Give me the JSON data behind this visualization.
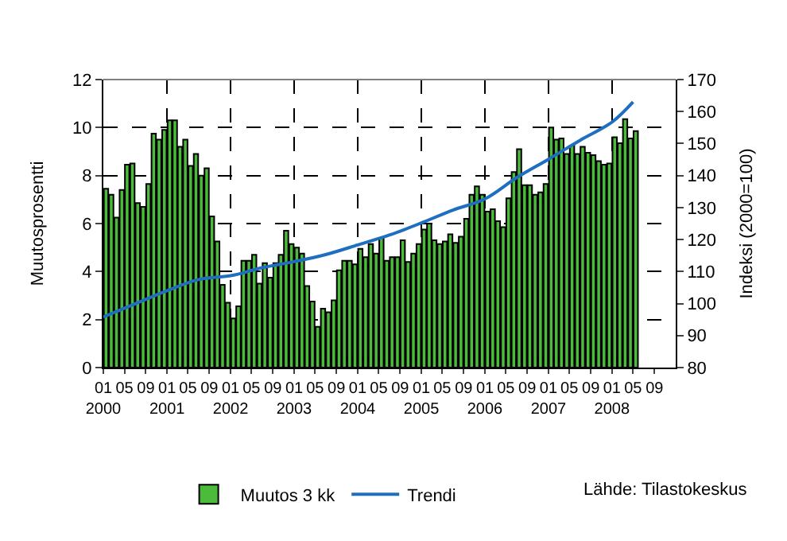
{
  "chart_data": {
    "type": "bar",
    "ylabel": "Muutosprosentti",
    "y2label": "Indeksi (2000=100)",
    "x": [
      "2000-01",
      "2000-02",
      "2000-03",
      "2000-04",
      "2000-05",
      "2000-06",
      "2000-07",
      "2000-08",
      "2000-09",
      "2000-10",
      "2000-11",
      "2000-12",
      "2001-01",
      "2001-02",
      "2001-03",
      "2001-04",
      "2001-05",
      "2001-06",
      "2001-07",
      "2001-08",
      "2001-09",
      "2001-10",
      "2001-11",
      "2001-12",
      "2002-01",
      "2002-02",
      "2002-03",
      "2002-04",
      "2002-05",
      "2002-06",
      "2002-07",
      "2002-08",
      "2002-09",
      "2002-10",
      "2002-11",
      "2002-12",
      "2003-01",
      "2003-02",
      "2003-03",
      "2003-04",
      "2003-05",
      "2003-06",
      "2003-07",
      "2003-08",
      "2003-09",
      "2003-10",
      "2003-11",
      "2003-12",
      "2004-01",
      "2004-02",
      "2004-03",
      "2004-04",
      "2004-05",
      "2004-06",
      "2004-07",
      "2004-08",
      "2004-09",
      "2004-10",
      "2004-11",
      "2004-12",
      "2005-01",
      "2005-02",
      "2005-03",
      "2005-04",
      "2005-05",
      "2005-06",
      "2005-07",
      "2005-08",
      "2005-09",
      "2005-10",
      "2005-11",
      "2005-12",
      "2006-01",
      "2006-02",
      "2006-03",
      "2006-04",
      "2006-05",
      "2006-06",
      "2006-07",
      "2006-08",
      "2006-09",
      "2006-10",
      "2006-11",
      "2006-12",
      "2007-01",
      "2007-02",
      "2007-03",
      "2007-04",
      "2007-05",
      "2007-06",
      "2007-07",
      "2007-08",
      "2007-09",
      "2007-10",
      "2007-11",
      "2007-12",
      "2008-01",
      "2008-02",
      "2008-03",
      "2008-04",
      "2008-05"
    ],
    "series": [
      {
        "name": "Muutos 3 kk",
        "color": "#4cbb3c",
        "values": [
          7.45,
          7.2,
          6.25,
          7.4,
          8.45,
          8.5,
          6.85,
          6.7,
          7.65,
          9.75,
          9.5,
          9.9,
          10.3,
          10.3,
          9.2,
          9.5,
          8.4,
          8.9,
          8.0,
          8.3,
          6.3,
          5.25,
          3.45,
          2.7,
          2.05,
          2.55,
          4.45,
          4.45,
          4.7,
          3.5,
          4.35,
          3.75,
          4.35,
          4.7,
          5.7,
          5.15,
          5.0,
          4.75,
          3.4,
          2.75,
          1.7,
          2.45,
          2.3,
          2.8,
          4.05,
          4.45,
          4.45,
          4.3,
          4.95,
          4.6,
          5.15,
          4.75,
          5.4,
          4.45,
          4.6,
          4.6,
          5.3,
          4.4,
          4.75,
          5.15,
          5.75,
          6.0,
          5.3,
          5.15,
          5.25,
          5.55,
          5.2,
          5.45,
          6.2,
          7.2,
          7.55,
          7.2,
          6.5,
          6.6,
          6.1,
          5.85,
          7.05,
          8.15,
          9.1,
          7.6,
          7.6,
          7.2,
          7.3,
          7.65,
          10.0,
          9.5,
          9.55,
          8.9,
          9.25,
          8.9,
          9.2,
          8.95,
          8.85,
          8.6,
          8.45,
          8.5,
          9.6,
          9.35,
          10.35,
          9.55,
          9.85
        ]
      },
      {
        "name": "Trendi",
        "type": "line",
        "axis": "y2",
        "color": "#1f6fc0",
        "x": [
          "2000-01",
          "2000-07",
          "2001-01",
          "2001-07",
          "2002-01",
          "2002-07",
          "2003-01",
          "2003-07",
          "2004-01",
          "2004-07",
          "2005-01",
          "2005-07",
          "2006-01",
          "2006-07",
          "2007-01",
          "2007-07",
          "2008-01",
          "2008-05"
        ],
        "values": [
          95.8,
          99.9,
          104,
          107.5,
          108.7,
          111.2,
          113.1,
          115.3,
          118.3,
          121.4,
          125.2,
          129.2,
          132.7,
          139.3,
          145.1,
          151,
          156.7,
          163
        ]
      }
    ],
    "xlim": [
      "2000-01",
      "2009-01"
    ],
    "xticks": [
      {
        "value": "2000-01",
        "label": "01\n2000"
      },
      {
        "value": "2000-05",
        "label": "05"
      },
      {
        "value": "2000-09",
        "label": "09"
      },
      {
        "value": "2001-01",
        "label": "01\n2001"
      },
      {
        "value": "2001-05",
        "label": "05"
      },
      {
        "value": "2001-09",
        "label": "09"
      },
      {
        "value": "2002-01",
        "label": "01\n2002"
      },
      {
        "value": "2002-05",
        "label": "05"
      },
      {
        "value": "2002-09",
        "label": "09"
      },
      {
        "value": "2003-01",
        "label": "01\n2003"
      },
      {
        "value": "2003-05",
        "label": "05"
      },
      {
        "value": "2003-09",
        "label": "09"
      },
      {
        "value": "2004-01",
        "label": "01\n2004"
      },
      {
        "value": "2004-05",
        "label": "05"
      },
      {
        "value": "2004-09",
        "label": "09"
      },
      {
        "value": "2005-01",
        "label": "01\n2005"
      },
      {
        "value": "2005-05",
        "label": "05"
      },
      {
        "value": "2005-09",
        "label": "09"
      },
      {
        "value": "2006-01",
        "label": "01\n2006"
      },
      {
        "value": "2006-05",
        "label": "05"
      },
      {
        "value": "2006-09",
        "label": "09"
      },
      {
        "value": "2007-01",
        "label": "01\n2007"
      },
      {
        "value": "2007-05",
        "label": "05"
      },
      {
        "value": "2007-09",
        "label": "09"
      },
      {
        "value": "2008-01",
        "label": "01\n2008"
      },
      {
        "value": "2008-05",
        "label": "05"
      },
      {
        "value": "2008-09",
        "label": "09"
      }
    ],
    "ylim": [
      0,
      12
    ],
    "yticks": [
      0,
      2,
      4,
      6,
      8,
      10,
      12
    ],
    "y2lim": [
      80,
      170
    ],
    "y2ticks": [
      80,
      90,
      100,
      110,
      120,
      130,
      140,
      150,
      160,
      170
    ],
    "grid": true,
    "legend": "bottom",
    "annotations": [
      "Lähde: Tilastokeskus"
    ]
  }
}
